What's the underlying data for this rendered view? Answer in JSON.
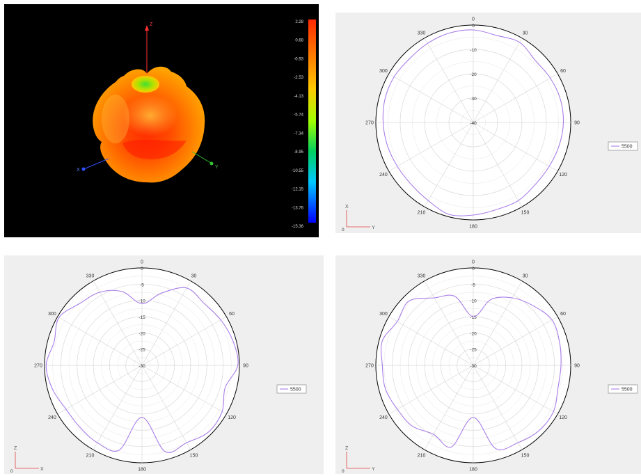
{
  "colorbar": {
    "ticks": [
      "2.28",
      "0.68",
      "-0.93",
      "-2.53",
      "-4.13",
      "-5.74",
      "-7.34",
      "-8.95",
      "-10.55",
      "-12.15",
      "-13.76",
      "-15.36"
    ],
    "colors": [
      "#ff2a00",
      "#ff7800",
      "#ffc800",
      "#a0ff00",
      "#00d060",
      "#00c8ff",
      "#0000ff"
    ]
  },
  "axes3d": {
    "z": "Z",
    "x": "X",
    "y": "Y"
  },
  "axis_legends": [
    {
      "vertical": "X",
      "horizontal": "Y",
      "origin": "0"
    },
    {
      "vertical": "Z",
      "horizontal": "X",
      "origin": "0"
    },
    {
      "vertical": "Z",
      "horizontal": "Y",
      "origin": "0"
    }
  ],
  "chart_data": [
    {
      "type": "polar",
      "angles": [
        "0",
        "30",
        "60",
        "90",
        "120",
        "150",
        "180",
        "210",
        "240",
        "270",
        "300",
        "330"
      ],
      "rticks": [
        "0",
        "-10",
        "-20",
        "-30",
        "-40"
      ],
      "rlim": [
        -40,
        0
      ],
      "series": [
        {
          "name": "5500",
          "color": "#a87ee8",
          "theta": [
            0,
            15,
            30,
            45,
            60,
            75,
            90,
            105,
            120,
            135,
            150,
            165,
            180,
            195,
            210,
            225,
            240,
            255,
            270,
            285,
            300,
            315,
            330,
            345
          ],
          "r": [
            -2,
            -3,
            -2,
            -4,
            -3.5,
            -3,
            -3,
            -3.5,
            -4,
            -4,
            -3,
            -3,
            -2,
            -1,
            -3,
            -4,
            -4,
            -3.5,
            -3,
            -2.5,
            -2.5,
            -3,
            -2.5,
            -2
          ]
        }
      ],
      "legend": "right"
    },
    {
      "type": "polar",
      "angles": [
        "0",
        "30",
        "60",
        "90",
        "120",
        "150",
        "180",
        "210",
        "240",
        "270",
        "300",
        "330"
      ],
      "rticks": [
        "0",
        "-5",
        "-10",
        "-15",
        "-20",
        "-25",
        "-30"
      ],
      "rlim": [
        -30,
        0
      ],
      "series": [
        {
          "name": "5500",
          "color": "#a87ee8",
          "theta": [
            0,
            15,
            30,
            45,
            60,
            75,
            90,
            105,
            120,
            135,
            150,
            165,
            180,
            195,
            210,
            225,
            240,
            255,
            270,
            285,
            300,
            315,
            330,
            345
          ],
          "r": [
            -11,
            -7,
            -2.5,
            -3,
            -2,
            -1,
            -0.5,
            -3.5,
            -1.5,
            -1,
            -2.5,
            -2.5,
            -14,
            -3,
            -2.5,
            -3,
            -3,
            -1.5,
            -0.5,
            -2,
            -0.5,
            -3,
            -4,
            -6.5
          ]
        }
      ],
      "legend": "right"
    },
    {
      "type": "polar",
      "angles": [
        "0",
        "30",
        "60",
        "90",
        "120",
        "150",
        "180",
        "210",
        "240",
        "270",
        "300",
        "330"
      ],
      "rticks": [
        "0",
        "-5",
        "-10",
        "-15",
        "-20",
        "-25",
        "-30"
      ],
      "rlim": [
        -30,
        0
      ],
      "series": [
        {
          "name": "5500",
          "color": "#a87ee8",
          "theta": [
            0,
            15,
            30,
            45,
            60,
            75,
            90,
            105,
            120,
            135,
            150,
            165,
            180,
            195,
            210,
            225,
            240,
            255,
            270,
            285,
            300,
            315,
            330,
            345
          ],
          "r": [
            -15,
            -9,
            -6,
            -4,
            -2,
            -2.5,
            -3,
            -3,
            -1.5,
            -1.5,
            -2.5,
            -3.5,
            -14,
            -4,
            -5.5,
            -3.5,
            -3,
            -2,
            -2,
            -1,
            -3,
            -2,
            -6,
            -8
          ]
        }
      ],
      "legend": "right"
    }
  ]
}
